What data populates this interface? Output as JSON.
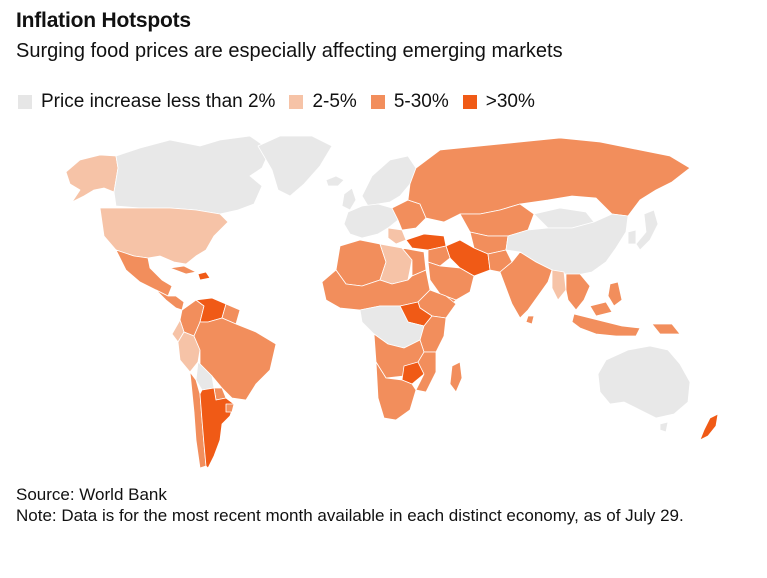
{
  "header": {
    "title": "Inflation Hotspots",
    "subtitle": "Surging food prices are especially affecting emerging markets"
  },
  "legend": [
    {
      "label": "Price increase less than 2%",
      "color": "#e6e6e6"
    },
    {
      "label": "2-5%",
      "color": "#f6c3a7"
    },
    {
      "label": "5-30%",
      "color": "#f28e5c"
    },
    {
      "label": ">30%",
      "color": "#f05a16"
    }
  ],
  "colors": {
    "none": "#e8e8e8",
    "low": "#f6c3a7",
    "mid": "#f28e5c",
    "high": "#f05a16",
    "border": "#ffffff",
    "outline": "#222222"
  },
  "footer": {
    "source": "Source: World Bank",
    "note": "Note: Data is for the most recent month available in each distinct economy, as of July 29."
  }
}
